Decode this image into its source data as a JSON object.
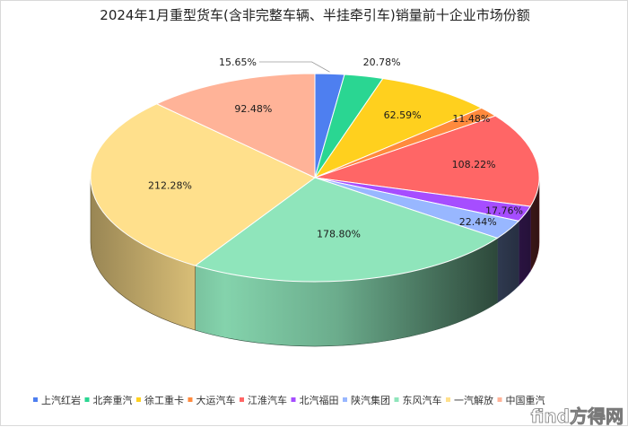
{
  "chart_data": {
    "type": "pie",
    "title": "2024年1月重型货车(含非完整车辆、半挂牵引车)销量前十企业市场份额",
    "categories": [
      "上汽红岩",
      "北奔重汽",
      "徐工重卡",
      "大运汽车",
      "江淮汽车",
      "北汽福田",
      "陕汽集团",
      "东风汽车",
      "一汽解放",
      "中国重汽"
    ],
    "values": [
      15.65,
      20.78,
      62.59,
      11.48,
      108.22,
      17.76,
      22.44,
      178.8,
      212.28,
      92.48
    ],
    "data_labels": [
      "15.65%",
      "20.78%",
      "62.59%",
      "11.48%",
      "108.22%",
      "17.76%",
      "22.44%",
      "178.80%",
      "212.28%",
      "92.48%"
    ],
    "colors": [
      "#4e7ff0",
      "#2ad692",
      "#ffd01e",
      "#ff8a3d",
      "#ff6666",
      "#a64dff",
      "#98b7ff",
      "#8fe5bb",
      "#ffe08c",
      "#ffb398"
    ],
    "legend_position": "bottom",
    "style": "3d"
  },
  "watermark": {
    "text": "find方得网"
  }
}
